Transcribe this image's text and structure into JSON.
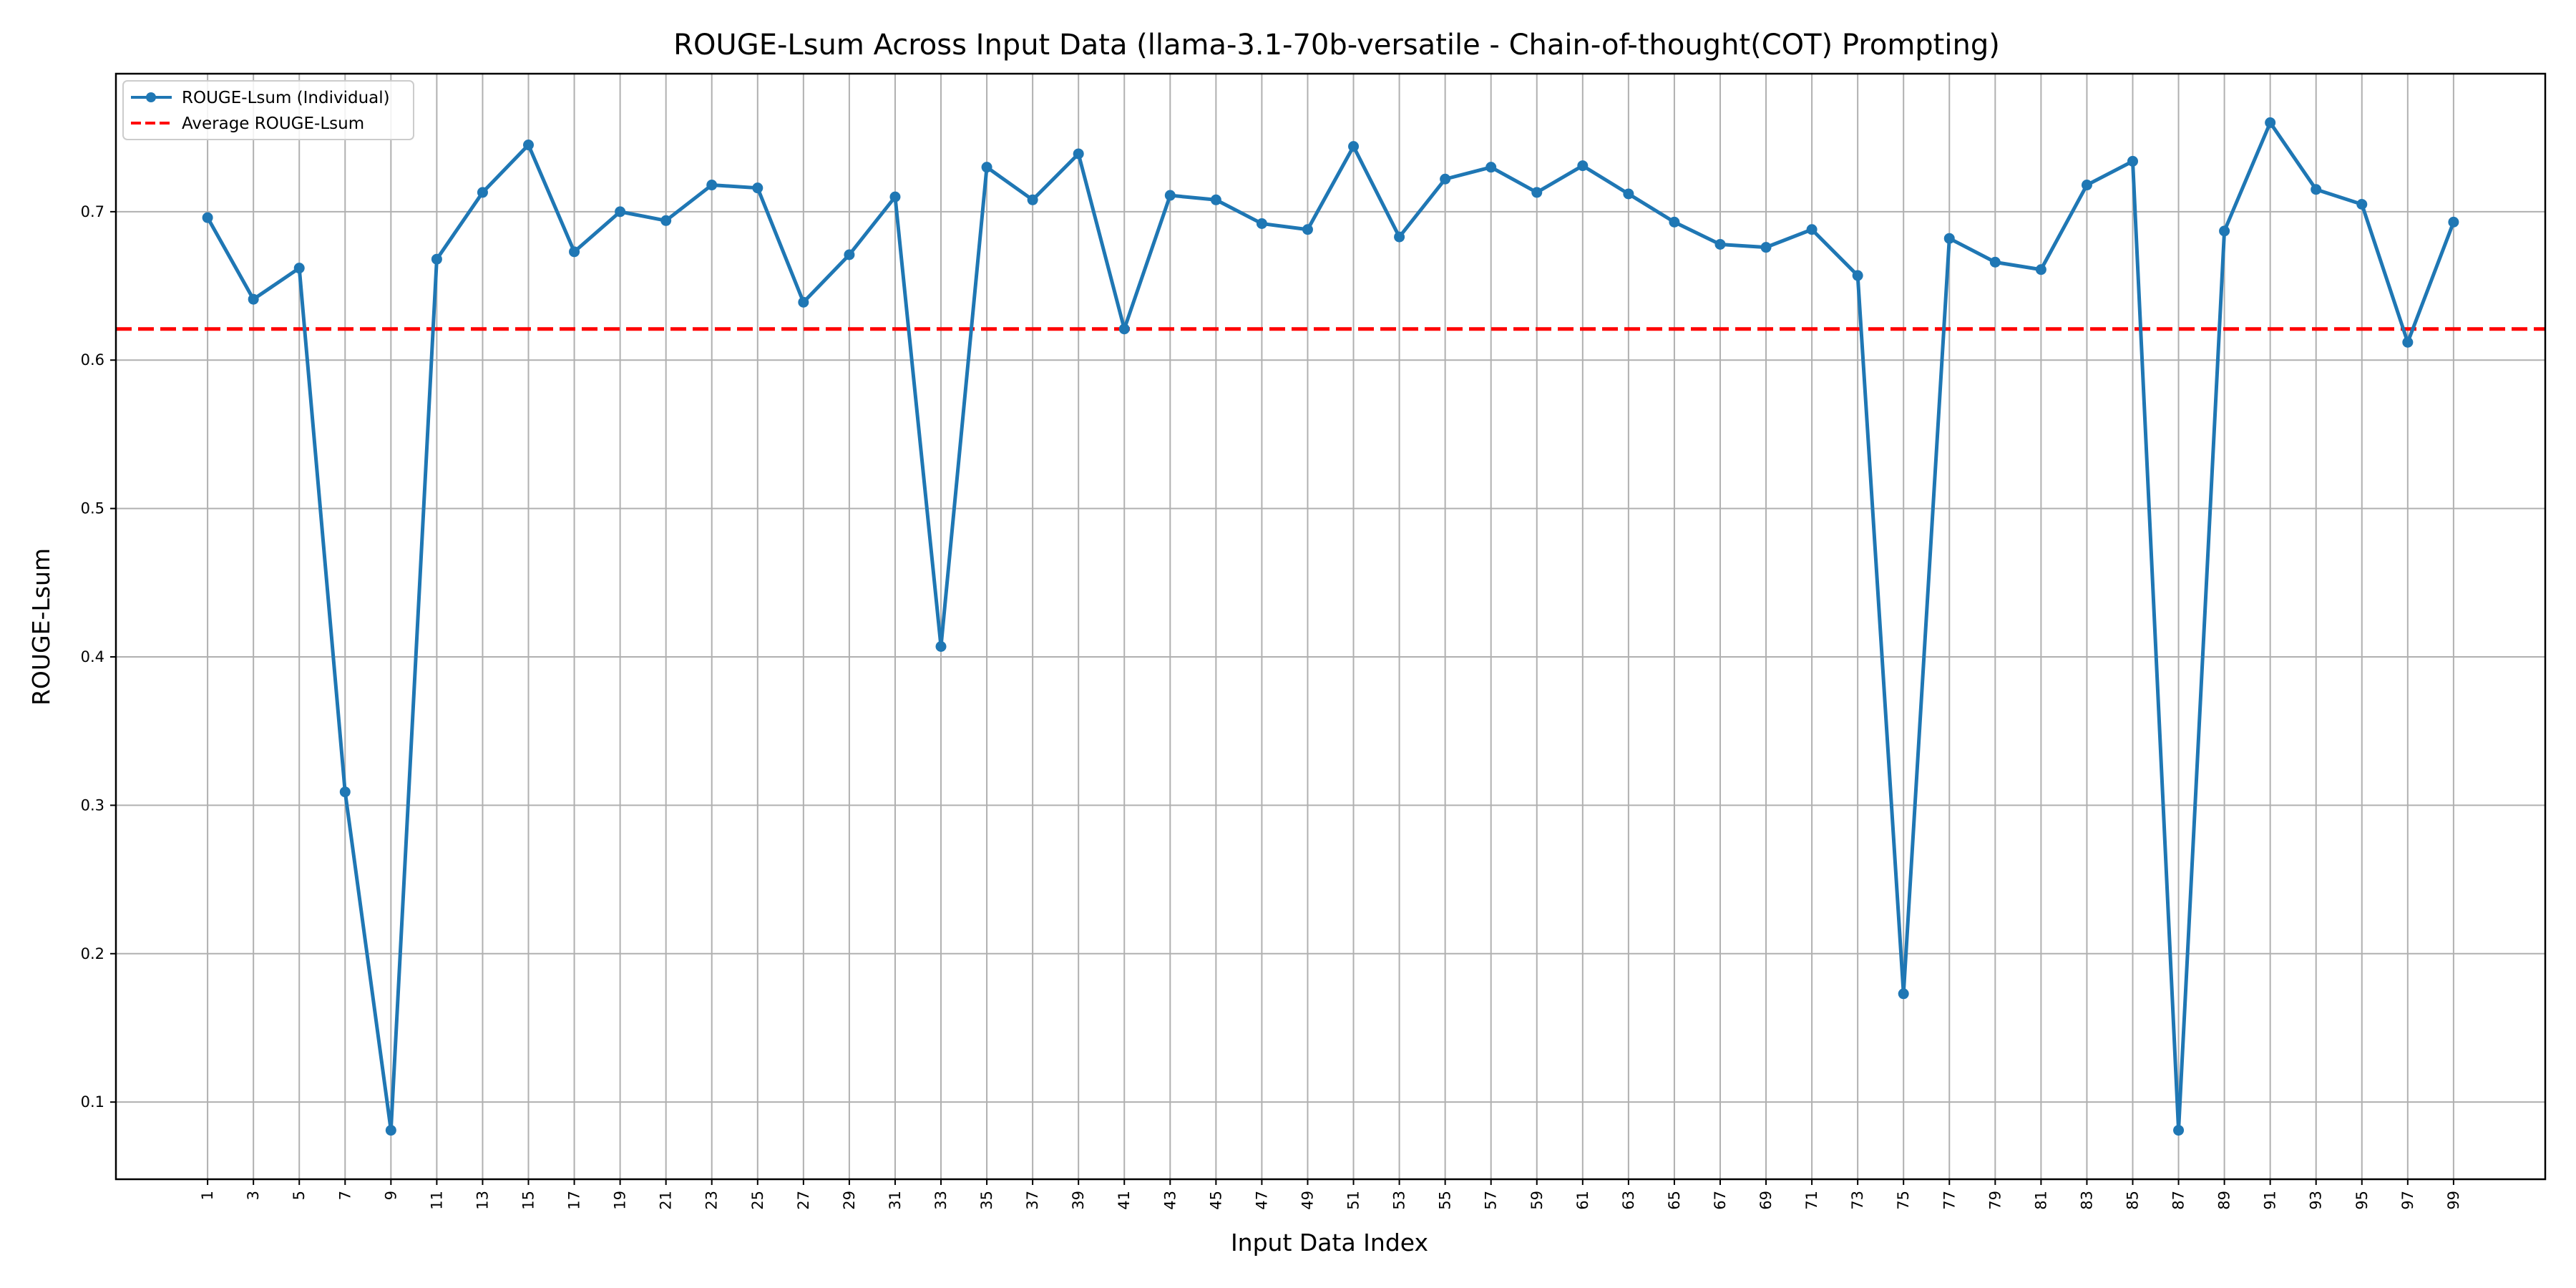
{
  "chart_data": {
    "type": "line",
    "title": "ROUGE-Lsum Across Input Data (llama-3.1-70b-versatile - Chain-of-thought(COT) Prompting)",
    "xlabel": "Input Data Index",
    "ylabel": "ROUGE-Lsum",
    "x": [
      1,
      3,
      5,
      7,
      9,
      11,
      13,
      15,
      17,
      19,
      21,
      23,
      25,
      27,
      29,
      31,
      33,
      35,
      37,
      39,
      41,
      43,
      45,
      47,
      49,
      51,
      53,
      55,
      57,
      59,
      61,
      63,
      65,
      67,
      69,
      71,
      73,
      75,
      77,
      79,
      81,
      83,
      85,
      87,
      89,
      91,
      93,
      95,
      97,
      99
    ],
    "xlim": [
      -3,
      103
    ],
    "ylim": [
      0.048,
      0.793
    ],
    "yticks": [
      0.1,
      0.2,
      0.3,
      0.4,
      0.5,
      0.6,
      0.7
    ],
    "grid": true,
    "legend_position": "top-left",
    "series": [
      {
        "name": "ROUGE-Lsum (Individual)",
        "color": "#1f77b4",
        "marker": "circle",
        "values": [
          0.696,
          0.641,
          0.662,
          0.309,
          0.081,
          0.668,
          0.713,
          0.745,
          0.673,
          0.7,
          0.694,
          0.718,
          0.716,
          0.639,
          0.671,
          0.71,
          0.407,
          0.73,
          0.708,
          0.739,
          0.621,
          0.711,
          0.708,
          0.692,
          0.688,
          0.744,
          0.683,
          0.722,
          0.73,
          0.713,
          0.731,
          0.712,
          0.693,
          0.678,
          0.676,
          0.688,
          0.657,
          0.173,
          0.682,
          0.666,
          0.661,
          0.718,
          0.734,
          0.081,
          0.687,
          0.76,
          0.715,
          0.705,
          0.612,
          0.693
        ]
      }
    ],
    "average": {
      "name": "Average ROUGE-Lsum",
      "value": 0.621,
      "color": "#ff0000",
      "style": "dashed"
    }
  }
}
